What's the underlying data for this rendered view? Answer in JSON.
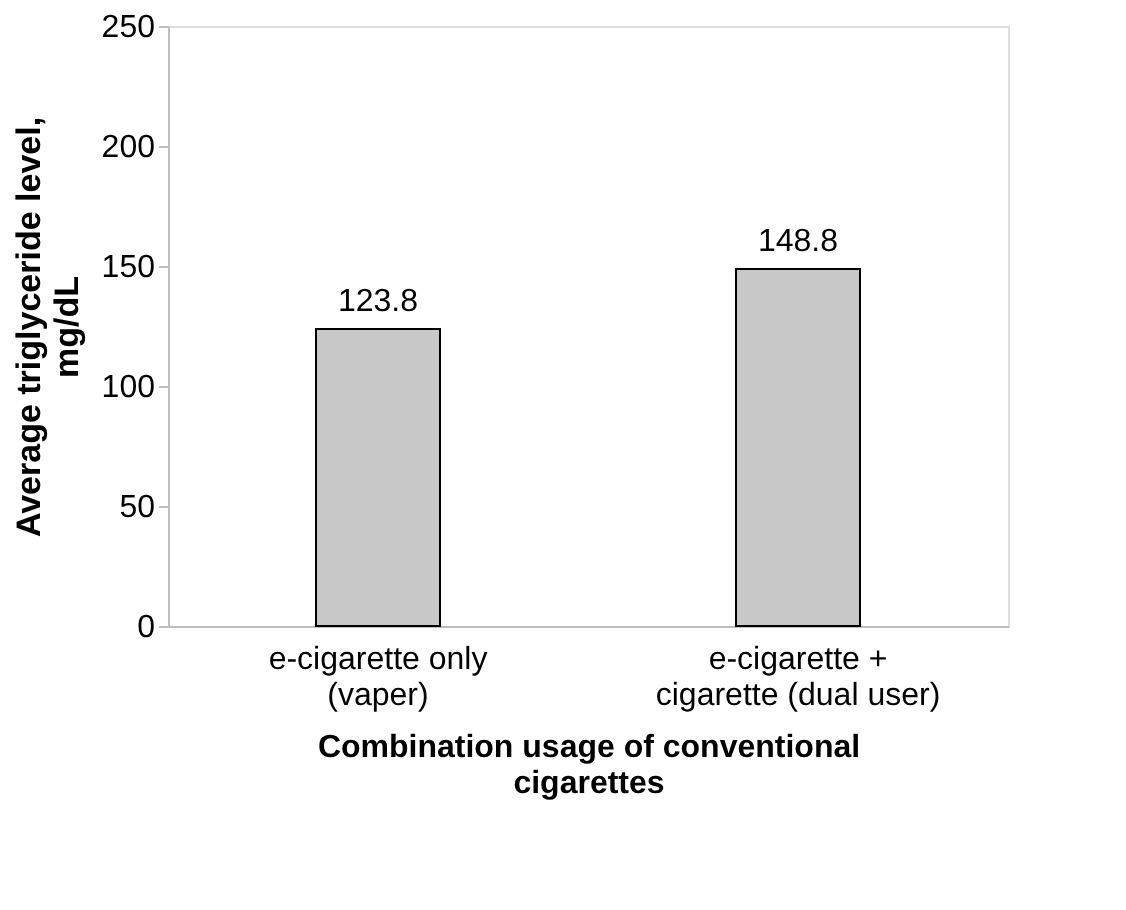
{
  "chart_data": {
    "type": "bar",
    "categories": [
      "e-cigarette only\n(vaper)",
      "e-cigarette +\ncigarette (dual user)"
    ],
    "values": [
      123.8,
      148.8
    ],
    "color": "#c8c8c8",
    "xlabel": "Combination usage of conventional\ncigarettes",
    "ylabel": "Average triglyceride level,\nmg/dL",
    "ylim": [
      0,
      250
    ],
    "yticks": [
      0,
      50,
      100,
      150,
      200,
      250
    ],
    "grid": false,
    "data_labels": true
  }
}
